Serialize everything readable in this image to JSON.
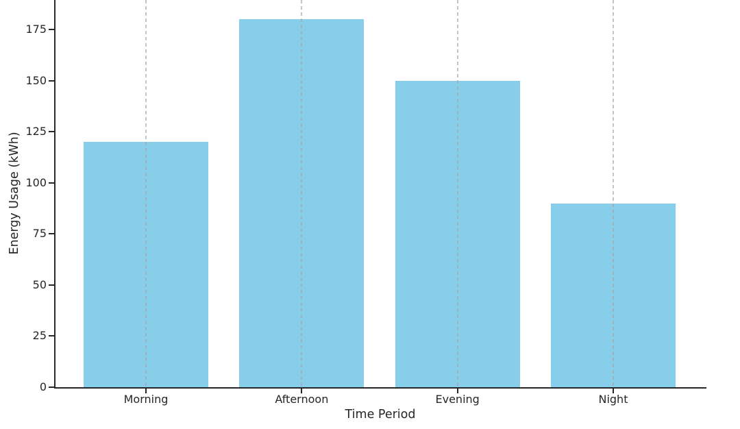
{
  "chart_data": {
    "type": "bar",
    "title": "",
    "categories": [
      "Morning",
      "Afternoon",
      "Evening",
      "Night"
    ],
    "values": [
      120,
      180,
      150,
      90
    ],
    "xlabel": "Time Period",
    "ylabel": "Energy Usage (kWh)",
    "yticks": [
      0,
      25,
      50,
      75,
      100,
      125,
      150,
      175
    ],
    "ylim": [
      0,
      189.4
    ],
    "grid": "vertical-dashed-over-bars",
    "legend": "none",
    "top_edge_clipped": true,
    "colors": {
      "bar_fill": "#87CEEB",
      "gridline": "#c6c6c6",
      "axis": "#262626",
      "text": "#262626",
      "background": "#ffffff"
    }
  }
}
